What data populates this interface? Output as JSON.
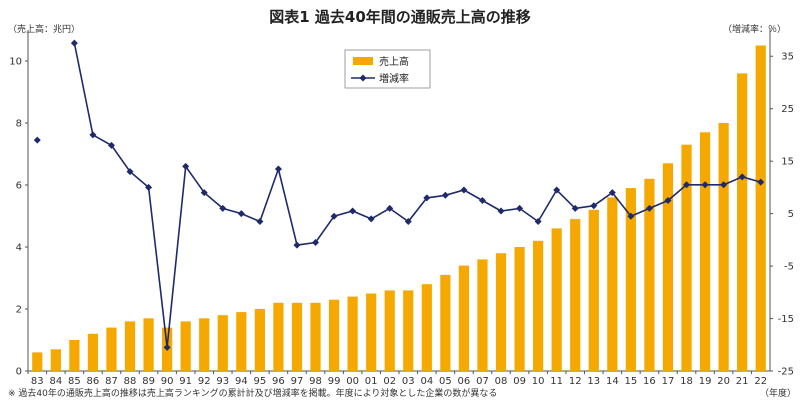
{
  "title": "図表1 過去40年間の通販売上高の推移",
  "left_unit": "（売上高：兆円）",
  "right_unit": "（増減率：％）",
  "x_unit": "（年度）",
  "note": "※ 過去40年の通販売上高の推移は売上高ランキングの累計計及び増減率を掲載。年度により対象とした企業の数が異なる",
  "colors": {
    "bar": "#F5A800",
    "line": "#1F2A6B",
    "axis": "#555555"
  },
  "chart_data": {
    "type": "bar",
    "categories": [
      "83",
      "84",
      "85",
      "86",
      "87",
      "88",
      "89",
      "90",
      "91",
      "92",
      "93",
      "94",
      "95",
      "96",
      "97",
      "98",
      "99",
      "00",
      "01",
      "02",
      "03",
      "04",
      "05",
      "06",
      "07",
      "08",
      "09",
      "10",
      "11",
      "12",
      "13",
      "14",
      "15",
      "16",
      "17",
      "18",
      "19",
      "20",
      "21",
      "22"
    ],
    "series": [
      {
        "name": "売上高",
        "type": "bar",
        "axis": "left",
        "values": [
          0.6,
          0.7,
          1.0,
          1.2,
          1.4,
          1.6,
          1.7,
          1.4,
          1.6,
          1.7,
          1.8,
          1.9,
          2.0,
          2.2,
          2.2,
          2.2,
          2.3,
          2.4,
          2.5,
          2.6,
          2.6,
          2.8,
          3.1,
          3.4,
          3.6,
          3.8,
          4.0,
          4.2,
          4.6,
          4.9,
          5.2,
          5.6,
          5.9,
          6.2,
          6.7,
          7.3,
          7.7,
          8.0,
          9.6,
          10.5
        ]
      },
      {
        "name": "増減率",
        "type": "line",
        "axis": "right",
        "values": [
          19,
          null,
          37.5,
          20,
          18,
          13,
          10,
          -20.5,
          14,
          9,
          6,
          5,
          3.5,
          13.5,
          -1,
          -0.5,
          4.5,
          5.5,
          4,
          6,
          3.5,
          8,
          8.5,
          9.5,
          7.5,
          5.5,
          6,
          3.5,
          9.5,
          6,
          6.5,
          9,
          4.5,
          6,
          7.5,
          10.5,
          10.5,
          10.5,
          12,
          11
        ]
      }
    ],
    "left_ticks": [
      "0",
      "2",
      "4",
      "6",
      "8",
      "10"
    ],
    "right_ticks": [
      "-25",
      "-15",
      "-5",
      "5",
      "15",
      "25",
      "35"
    ],
    "ylim_left": [
      0,
      11
    ],
    "ylim_right": [
      -25,
      40
    ],
    "legend_position": "top-center"
  }
}
